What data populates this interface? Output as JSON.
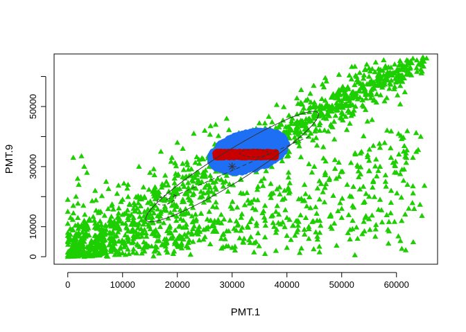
{
  "chart_data": {
    "type": "scatter",
    "title": "",
    "xlabel": "PMT.1",
    "ylabel": "PMT.9",
    "xlim": [
      -2500,
      67500
    ],
    "ylim": [
      -2500,
      67500
    ],
    "xticks": [
      0,
      10000,
      20000,
      30000,
      40000,
      50000,
      60000
    ],
    "yticks": [
      0,
      10000,
      30000,
      50000
    ],
    "ytick_labels_shown": [
      "0",
      "10000",
      "30000",
      "50000"
    ],
    "grid": false,
    "legend": "none",
    "series": [
      {
        "marker": "triangle",
        "color": "#1DCE00",
        "description_points": "dense cloud along the diagonal from (0,0) to (65000,66000)",
        "points": [
          [
            0,
            0
          ],
          [
            500,
            1500
          ],
          [
            1200,
            4000
          ],
          [
            2000,
            8000
          ],
          [
            3000,
            12000
          ],
          [
            800,
            2500
          ],
          [
            1500,
            6000
          ],
          [
            2500,
            10500
          ],
          [
            4000,
            1000
          ],
          [
            6000,
            2000
          ],
          [
            8000,
            3000
          ],
          [
            10000,
            1200
          ],
          [
            12000,
            2500
          ],
          [
            14000,
            1800
          ],
          [
            16000,
            3500
          ],
          [
            18000,
            2200
          ],
          [
            20000,
            4000
          ],
          [
            22000,
            3000
          ],
          [
            24000,
            5500
          ],
          [
            26000,
            4200
          ],
          [
            28000,
            6000
          ],
          [
            30000,
            3000
          ],
          [
            32000,
            5000
          ],
          [
            34000,
            1500
          ],
          [
            36000,
            6500
          ],
          [
            38000,
            8000
          ],
          [
            40000,
            7000
          ],
          [
            42000,
            9000
          ],
          [
            1000,
            33000
          ],
          [
            2500,
            33500
          ],
          [
            1800,
            26000
          ],
          [
            3500,
            28000
          ],
          [
            5000,
            22000
          ],
          [
            7000,
            25000
          ],
          [
            9000,
            21000
          ],
          [
            11000,
            24000
          ],
          [
            13000,
            30000
          ],
          [
            15000,
            28000
          ],
          [
            17000,
            35000
          ],
          [
            19000,
            33000
          ],
          [
            20000,
            38000
          ],
          [
            21000,
            36000
          ],
          [
            23000,
            41000
          ],
          [
            25000,
            42000
          ],
          [
            27000,
            44000
          ],
          [
            29000,
            46000
          ],
          [
            6000,
            15000
          ],
          [
            8000,
            17000
          ],
          [
            10000,
            19000
          ],
          [
            12000,
            16000
          ],
          [
            14000,
            20000
          ],
          [
            16000,
            22000
          ],
          [
            18000,
            25000
          ],
          [
            20000,
            27000
          ],
          [
            22000,
            29000
          ],
          [
            24000,
            31000
          ],
          [
            26000,
            33000
          ],
          [
            28000,
            35000
          ],
          [
            4000,
            12000
          ],
          [
            6000,
            9000
          ],
          [
            8000,
            11000
          ],
          [
            10000,
            14000
          ],
          [
            12000,
            13000
          ],
          [
            14000,
            15000
          ],
          [
            16000,
            17000
          ],
          [
            18000,
            19000
          ],
          [
            20000,
            21000
          ],
          [
            22000,
            23000
          ],
          [
            24000,
            25000
          ],
          [
            26000,
            27000
          ],
          [
            28000,
            29000
          ],
          [
            30000,
            31000
          ],
          [
            32000,
            33000
          ],
          [
            34000,
            35000
          ],
          [
            36000,
            37000
          ],
          [
            38000,
            39000
          ],
          [
            40000,
            41000
          ],
          [
            42000,
            43000
          ],
          [
            44000,
            45000
          ],
          [
            46000,
            47000
          ],
          [
            48000,
            49000
          ],
          [
            50000,
            51000
          ],
          [
            52000,
            53000
          ],
          [
            54000,
            55000
          ],
          [
            56000,
            57000
          ],
          [
            58000,
            59000
          ],
          [
            60000,
            60000
          ],
          [
            62000,
            62000
          ],
          [
            64000,
            64000
          ],
          [
            65000,
            65000
          ],
          [
            63000,
            66000
          ],
          [
            61000,
            64000
          ],
          [
            59000,
            63000
          ],
          [
            57000,
            62000
          ],
          [
            55000,
            60000
          ],
          [
            53000,
            58000
          ],
          [
            51000,
            56000
          ],
          [
            49000,
            54000
          ],
          [
            47000,
            52000
          ],
          [
            45000,
            50000
          ],
          [
            43000,
            48000
          ],
          [
            41000,
            46000
          ],
          [
            39000,
            44000
          ],
          [
            37000,
            42000
          ],
          [
            35000,
            40000
          ],
          [
            40000,
            36000
          ],
          [
            42000,
            38000
          ],
          [
            44000,
            40000
          ],
          [
            46000,
            42000
          ],
          [
            48000,
            44000
          ],
          [
            50000,
            46000
          ],
          [
            52000,
            48000
          ],
          [
            54000,
            50000
          ],
          [
            56000,
            52000
          ],
          [
            45000,
            30000
          ],
          [
            47000,
            28000
          ],
          [
            49000,
            26000
          ],
          [
            51000,
            24000
          ],
          [
            53000,
            30000
          ],
          [
            55000,
            32000
          ],
          [
            57000,
            30000
          ],
          [
            59000,
            33000
          ],
          [
            61000,
            29000
          ],
          [
            63000,
            33000
          ],
          [
            60000,
            28000
          ],
          [
            58000,
            25000
          ],
          [
            62000,
            24000
          ],
          [
            63000,
            23500
          ],
          [
            55000,
            20000
          ],
          [
            57000,
            19000
          ],
          [
            59000,
            18000
          ],
          [
            54000,
            18000
          ],
          [
            52000,
            17000
          ],
          [
            50000,
            16000
          ],
          [
            48000,
            14000
          ],
          [
            46000,
            12000
          ],
          [
            44000,
            10000
          ],
          [
            42000,
            12000
          ],
          [
            40000,
            13000
          ],
          [
            38000,
            15000
          ],
          [
            36000,
            17000
          ],
          [
            34000,
            19000
          ],
          [
            32000,
            21000
          ],
          [
            50000,
            13000
          ],
          [
            52000,
            12000
          ],
          [
            48000,
            10000
          ],
          [
            46000,
            8000
          ],
          [
            44000,
            6000
          ],
          [
            36000,
            1000
          ],
          [
            38000,
            2000
          ],
          [
            40000,
            3000
          ],
          [
            30000,
            16000
          ],
          [
            28000,
            14000
          ],
          [
            26000,
            12000
          ],
          [
            24000,
            10000
          ],
          [
            22000,
            8000
          ],
          [
            20000,
            6000
          ],
          [
            18000,
            5000
          ],
          [
            16000,
            7000
          ],
          [
            14000,
            9000
          ],
          [
            12000,
            7000
          ],
          [
            10000,
            5000
          ],
          [
            8000,
            6000
          ],
          [
            6000,
            4000
          ],
          [
            4000,
            3000
          ],
          [
            2000,
            2000
          ],
          [
            3000,
            5000
          ],
          [
            5000,
            7000
          ],
          [
            7000,
            9000
          ],
          [
            9000,
            11000
          ],
          [
            11000,
            13000
          ],
          [
            13000,
            11000
          ],
          [
            15000,
            13000
          ],
          [
            17000,
            15000
          ],
          [
            19000,
            17000
          ],
          [
            21000,
            19000
          ],
          [
            23000,
            21000
          ],
          [
            25000,
            23000
          ],
          [
            27000,
            25000
          ],
          [
            29000,
            27000
          ],
          [
            31000,
            29000
          ],
          [
            33000,
            31000
          ],
          [
            0,
            19000
          ],
          [
            0,
            15000
          ],
          [
            0,
            11000
          ],
          [
            0,
            7000
          ],
          [
            500,
            13000
          ],
          [
            1000,
            17000
          ],
          [
            1500,
            20000
          ],
          [
            2000,
            24000
          ],
          [
            3000,
            30000
          ]
        ]
      },
      {
        "marker": "circle",
        "color": "#1F6FF5",
        "description_points": "dense blob centred near (32000,34000)",
        "center": [
          33000,
          35000
        ],
        "spread": [
          7000,
          6500
        ]
      },
      {
        "marker": "circle",
        "color": "#C80000",
        "description_points": "narrow horizontal band y≈34000, x 27000–38000",
        "center": [
          32500,
          34000
        ],
        "spread": [
          5500,
          800
        ]
      }
    ],
    "overlays": {
      "ellipse_outer": {
        "center": [
          30000,
          30000
        ],
        "semi_axes": [
          18500,
          5200
        ],
        "angle_deg": 32
      },
      "ellipse_inner": {
        "center": [
          34000,
          34500
        ],
        "semi_axes": [
          2600,
          1300
        ],
        "angle_deg": 0
      },
      "ellipse_left": {
        "center": [
          18000,
          19000
        ],
        "semi_axes": [
          1800,
          1500
        ],
        "angle_deg": 20
      },
      "dashed_line": {
        "from": [
          18000,
          19000
        ],
        "to": [
          44000,
          40000
        ]
      },
      "center_marker": [
        30000,
        30000
      ]
    }
  }
}
